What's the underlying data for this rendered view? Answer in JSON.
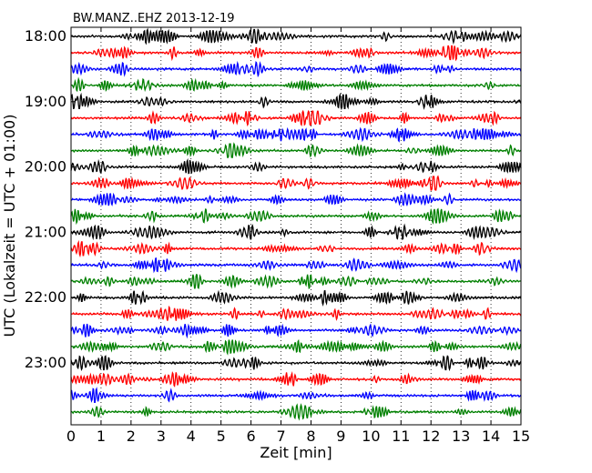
{
  "chart_data": {
    "type": "line",
    "title": "BW.MANZ..EHZ 2013-12-19",
    "xlabel": "Zeit  [min]",
    "ylabel": "UTC (Lokalzeit = UTC + 01:00)",
    "xlim": [
      0,
      15
    ],
    "xticks": [
      "0",
      "1",
      "2",
      "3",
      "4",
      "5",
      "6",
      "7",
      "8",
      "9",
      "10",
      "11",
      "12",
      "13",
      "14",
      "15"
    ],
    "yticks": [
      {
        "label": "18:00",
        "trace": 0
      },
      {
        "label": "19:00",
        "trace": 4
      },
      {
        "label": "20:00",
        "trace": 8
      },
      {
        "label": "21:00",
        "trace": 12
      },
      {
        "label": "22:00",
        "trace": 16
      },
      {
        "label": "23:00",
        "trace": 20
      }
    ],
    "trace_minutes": 15,
    "trace_count": 24,
    "trace_colors": [
      "#000000",
      "#ff0000",
      "#0000ff",
      "#008000"
    ],
    "grid": "vertical dotted"
  }
}
